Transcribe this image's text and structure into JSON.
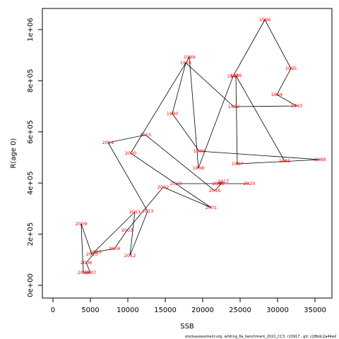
{
  "chart_data": {
    "type": "scatter",
    "x_label": "SSB",
    "y_label": "R(age 0)",
    "caption": "stockassessment.org, whiting_6a_benchmark_2021_CC3, r13917 , git: c28bdc2a44ad",
    "point_labels": [
      "1985",
      "1986",
      "1987",
      "1988",
      "1989",
      "1990",
      "1991",
      "1992",
      "1993",
      "1994",
      "1995",
      "1996",
      "1997",
      "1998",
      "1999",
      "2000",
      "2001",
      "2002",
      "2003",
      "2004",
      "2005",
      "2006",
      "2007",
      "2008",
      "2009",
      "2010",
      "2011",
      "2012",
      "2013",
      "2014",
      "2015",
      "2016",
      "2017",
      "2018",
      "2019",
      "2020"
    ],
    "x": [
      30940,
      24430,
      24620,
      35660,
      19530,
      15940,
      17740,
      24150,
      32550,
      29900,
      31790,
      28300,
      24060,
      19430,
      18210,
      10380,
      21130,
      14720,
      9910,
      8210,
      5660,
      4430,
      5000,
      4060,
      3770,
      5190,
      10940,
      10280,
      12640,
      7360,
      12360,
      21600,
      22740,
      22080,
      16420,
      26230
    ],
    "values": [
      486100,
      820300,
      475000,
      491600,
      524800,
      671200,
      870000,
      698800,
      701500,
      745700,
      847900,
      1038500,
      817500,
      458500,
      892100,
      516500,
      303800,
      383900,
      215400,
      143600,
      129800,
      88400,
      49700,
      49700,
      240300,
      121500,
      287200,
      116000,
      290000,
      557900,
      588300,
      370100,
      406000,
      397700,
      397700,
      397700
    ],
    "line_color": "#000000",
    "label_color": "#ff0000",
    "xlim": [
      -1415,
      37264
    ],
    "ylim": [
      -49700,
      1082700
    ],
    "xticks": [
      0,
      5000,
      10000,
      15000,
      20000,
      25000,
      30000,
      35000
    ],
    "yticks": [
      {
        "value": 0,
        "label": "0e+00"
      },
      {
        "value": 200000,
        "label": "2e+05"
      },
      {
        "value": 400000,
        "label": "4e+05"
      },
      {
        "value": 600000,
        "label": "6e+05"
      },
      {
        "value": 800000,
        "label": "8e+05"
      },
      {
        "value": 1000000,
        "label": "1e+06"
      }
    ]
  }
}
